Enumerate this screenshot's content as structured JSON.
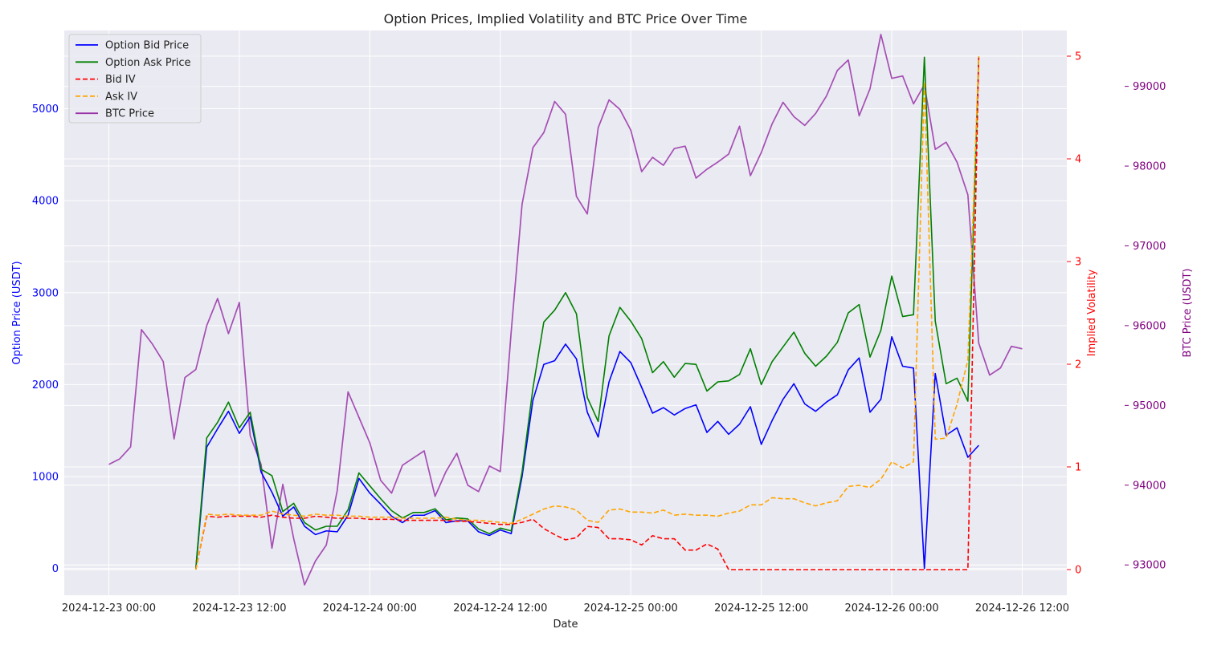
{
  "chart_data": {
    "type": "line",
    "title": "Option Prices, Implied Volatility and BTC Price Over Time",
    "xlabel": "Date",
    "y_axes": [
      {
        "id": "price",
        "label": "Option Price (USDT)",
        "color": "#0000ff",
        "ylim": [
          -290,
          5850
        ],
        "ticks": [
          0,
          1000,
          2000,
          3000,
          4000,
          5000
        ],
        "tick_labels": [
          "0",
          "1000",
          "2000",
          "3000",
          "4000",
          "5000"
        ]
      },
      {
        "id": "iv",
        "label": "Implied Volatility",
        "color": "#ff0000",
        "ylim": [
          -0.25,
          5.25
        ],
        "ticks": [
          0,
          1,
          2,
          3,
          4,
          5
        ],
        "tick_labels": [
          "0",
          "1",
          "2",
          "3",
          "4",
          "5"
        ]
      },
      {
        "id": "btc",
        "label": "BTC Price (USDT)",
        "color": "#800080",
        "ylim": [
          92620,
          99700
        ],
        "ticks": [
          93000,
          94000,
          95000,
          96000,
          97000,
          98000,
          99000
        ],
        "tick_labels": [
          "93000",
          "94000",
          "95000",
          "96000",
          "97000",
          "98000",
          "99000"
        ]
      }
    ],
    "x_range_hours": [
      -4.1,
      88.1
    ],
    "x_ticks": {
      "hours": [
        0,
        12,
        24,
        36,
        48,
        60,
        72,
        84
      ],
      "labels": [
        "2024-12-23 00:00",
        "2024-12-23 12:00",
        "2024-12-24 00:00",
        "2024-12-24 12:00",
        "2024-12-25 00:00",
        "2024-12-25 12:00",
        "2024-12-26 00:00",
        "2024-12-26 12:00"
      ]
    },
    "grid": true,
    "legend": {
      "placement": "upper-left"
    },
    "series": [
      {
        "name": "Option Bid Price",
        "axis": "price",
        "color": "#0000ff",
        "dash": "solid",
        "start_hour": 8,
        "values": [
          0,
          1320,
          1520,
          1710,
          1470,
          1650,
          1050,
          830,
          570,
          670,
          460,
          370,
          410,
          400,
          580,
          980,
          820,
          700,
          570,
          500,
          580,
          580,
          630,
          500,
          520,
          520,
          400,
          360,
          420,
          380,
          1000,
          1830,
          2220,
          2260,
          2440,
          2280,
          1700,
          1430,
          2030,
          2360,
          2240,
          1970,
          1690,
          1750,
          1670,
          1740,
          1780,
          1480,
          1600,
          1460,
          1570,
          1760,
          1350,
          1610,
          1840,
          2010,
          1790,
          1710,
          1810,
          1890,
          2160,
          2290,
          1700,
          1840,
          2520,
          2200,
          2180,
          0,
          2120,
          1450,
          1530,
          1210,
          1340
        ]
      },
      {
        "name": "Option Ask Price",
        "axis": "price",
        "color": "#008000",
        "dash": "solid",
        "start_hour": 8,
        "values": [
          0,
          1420,
          1590,
          1810,
          1530,
          1700,
          1080,
          1010,
          620,
          710,
          500,
          420,
          460,
          460,
          640,
          1040,
          900,
          760,
          630,
          550,
          610,
          610,
          650,
          530,
          550,
          540,
          430,
          380,
          440,
          410,
          1050,
          1960,
          2680,
          2810,
          3000,
          2770,
          1860,
          1600,
          2530,
          2840,
          2690,
          2500,
          2130,
          2250,
          2080,
          2230,
          2220,
          1930,
          2030,
          2040,
          2110,
          2390,
          2000,
          2250,
          2410,
          2570,
          2340,
          2200,
          2310,
          2460,
          2780,
          2870,
          2300,
          2590,
          3180,
          2740,
          2760,
          5560,
          2690,
          2010,
          2070,
          1820,
          5560
        ]
      },
      {
        "name": "Bid IV",
        "axis": "iv",
        "color": "#ff0000",
        "dash": "dashed",
        "start_hour": 8,
        "values": [
          0,
          0.52,
          0.51,
          0.52,
          0.52,
          0.52,
          0.51,
          0.53,
          0.51,
          0.5,
          0.5,
          0.52,
          0.51,
          0.5,
          0.5,
          0.5,
          0.49,
          0.49,
          0.49,
          0.48,
          0.48,
          0.48,
          0.48,
          0.48,
          0.47,
          0.47,
          0.46,
          0.45,
          0.44,
          0.44,
          0.46,
          0.49,
          0.4,
          0.34,
          0.29,
          0.31,
          0.42,
          0.41,
          0.3,
          0.3,
          0.29,
          0.24,
          0.33,
          0.3,
          0.3,
          0.19,
          0.19,
          0.25,
          0.2,
          0,
          0,
          0,
          0,
          0,
          0,
          0,
          0,
          0,
          0,
          0,
          0,
          0,
          0,
          0,
          0,
          0,
          0,
          0,
          0,
          0,
          0,
          0,
          5.0
        ]
      },
      {
        "name": "Ask IV",
        "axis": "iv",
        "color": "#ffa500",
        "dash": "dashed",
        "start_hour": 8,
        "values": [
          0,
          0.54,
          0.53,
          0.54,
          0.53,
          0.53,
          0.53,
          0.57,
          0.54,
          0.53,
          0.52,
          0.54,
          0.53,
          0.53,
          0.52,
          0.52,
          0.51,
          0.51,
          0.51,
          0.5,
          0.5,
          0.5,
          0.5,
          0.51,
          0.49,
          0.48,
          0.48,
          0.47,
          0.46,
          0.45,
          0.49,
          0.54,
          0.59,
          0.62,
          0.61,
          0.58,
          0.48,
          0.46,
          0.58,
          0.59,
          0.56,
          0.56,
          0.55,
          0.58,
          0.53,
          0.54,
          0.53,
          0.53,
          0.52,
          0.55,
          0.57,
          0.63,
          0.63,
          0.7,
          0.69,
          0.69,
          0.65,
          0.62,
          0.65,
          0.67,
          0.81,
          0.82,
          0.8,
          0.88,
          1.05,
          0.99,
          1.05,
          4.75,
          1.27,
          1.28,
          1.61,
          2.04,
          5.0
        ]
      },
      {
        "name": "BTC Price",
        "axis": "btc",
        "color": "#9932a8",
        "dash": "solid",
        "start_hour": 0,
        "values": [
          94260,
          94330,
          94480,
          95950,
          95770,
          95550,
          94580,
          95350,
          95450,
          96000,
          96340,
          95900,
          96290,
          94620,
          94260,
          93210,
          94010,
          93330,
          92750,
          93050,
          93250,
          93930,
          95170,
          94850,
          94530,
          94060,
          93900,
          94250,
          94340,
          94430,
          93860,
          94170,
          94400,
          94000,
          93920,
          94240,
          94170,
          95920,
          97520,
          98230,
          98420,
          98810,
          98650,
          97620,
          97400,
          98480,
          98830,
          98710,
          98450,
          97930,
          98110,
          98010,
          98220,
          98250,
          97850,
          97960,
          98050,
          98150,
          98500,
          97880,
          98170,
          98530,
          98800,
          98620,
          98510,
          98660,
          98880,
          99200,
          99330,
          98630,
          98970,
          99650,
          99100,
          99130,
          98780,
          99020,
          98210,
          98300,
          98050,
          97640,
          95780,
          95380,
          95470,
          95740,
          95710
        ]
      }
    ]
  }
}
